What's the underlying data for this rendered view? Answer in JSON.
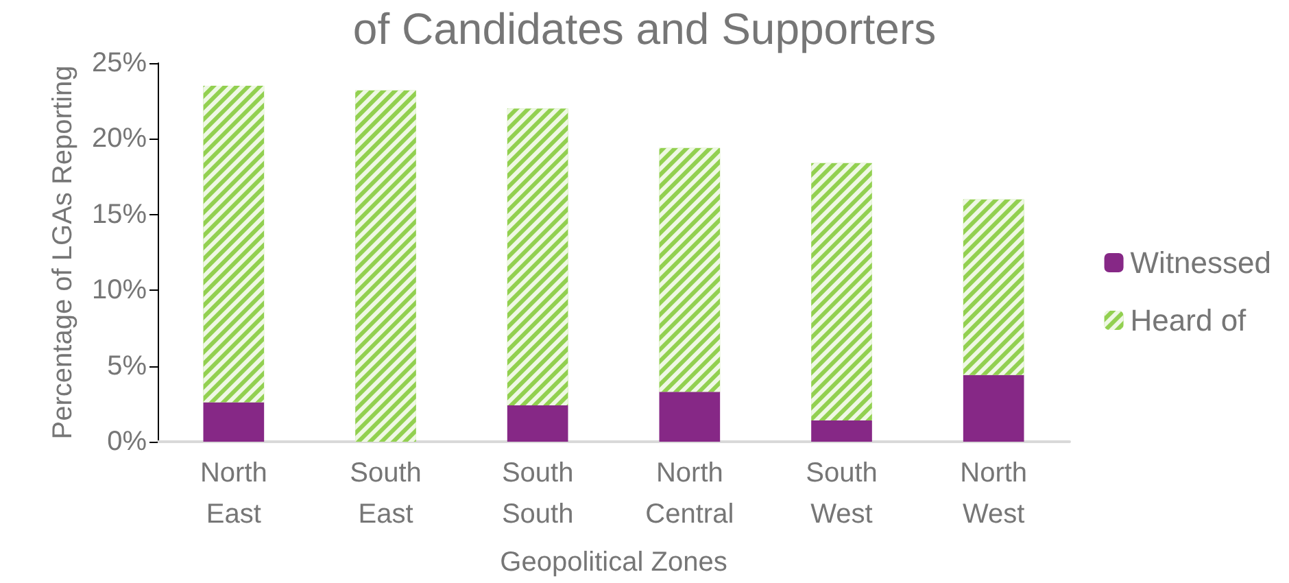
{
  "chart_data": {
    "type": "bar",
    "title": "of Candidates and Supporters",
    "xlabel": "Geopolitical Zones",
    "ylabel": "Percentage of LGAs Reporting",
    "categories": [
      "North East",
      "South East",
      "South South",
      "North Central",
      "South West",
      "North West"
    ],
    "series": [
      {
        "name": "Witnessed",
        "color": "#862886",
        "values": [
          2.6,
          0,
          2.4,
          3.3,
          1.4,
          4.4
        ]
      },
      {
        "name": "Heard of",
        "color": "#92d050",
        "values": [
          20.9,
          23.2,
          19.6,
          16.1,
          17.0,
          11.6
        ]
      }
    ],
    "stacked": true,
    "ylim": [
      0,
      25
    ],
    "yticks": [
      {
        "value": 0,
        "label": "0%"
      },
      {
        "value": 5,
        "label": "5%"
      },
      {
        "value": 10,
        "label": "10%"
      },
      {
        "value": 15,
        "label": "15%"
      },
      {
        "value": 20,
        "label": "20%"
      },
      {
        "value": 25,
        "label": "25%"
      }
    ],
    "grid": false,
    "legend": "right"
  }
}
